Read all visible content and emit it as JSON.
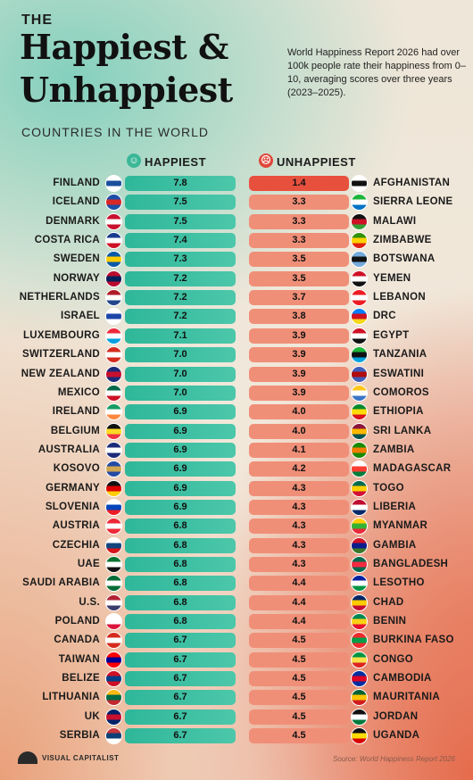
{
  "title": {
    "the": "THE",
    "line1": "Happiest &",
    "line2": "Unhappiest",
    "subtitle": "COUNTRIES IN THE WORLD"
  },
  "description": "World Happiness Report 2026 had over 100k people rate their happiness from 0–10, averaging scores over three years (2023–2025).",
  "headers": {
    "happiest": "HAPPIEST",
    "unhappiest": "UNHAPPIEST"
  },
  "footer": {
    "logo": "VISUAL CAPITALIST",
    "source": "Source: World Happiness Report 2026"
  },
  "colors": {
    "happiest_bar": "#3cbfa0",
    "unhappiest_bar": "#f08f78",
    "lowest_bar": "#e8503e",
    "teal_accent": "#60c9b4",
    "coral_accent": "#e46a4a"
  },
  "chart_data": [
    {
      "type": "bar",
      "title": "HAPPIEST",
      "categories": [
        "FINLAND",
        "ICELAND",
        "DENMARK",
        "COSTA RICA",
        "SWEDEN",
        "NORWAY",
        "NETHERLANDS",
        "ISRAEL",
        "LUXEMBOURG",
        "SWITZERLAND",
        "NEW ZEALAND",
        "MEXICO",
        "IRELAND",
        "BELGIUM",
        "AUSTRALIA",
        "KOSOVO",
        "GERMANY",
        "SLOVENIA",
        "AUSTRIA",
        "CZECHIA",
        "UAE",
        "SAUDI ARABIA",
        "U.S.",
        "POLAND",
        "CANADA",
        "TAIWAN",
        "BELIZE",
        "LITHUANIA",
        "UK",
        "SERBIA"
      ],
      "values": [
        "7.8",
        "7.5",
        "7.5",
        "7.4",
        "7.3",
        "7.2",
        "7.2",
        "7.2",
        "7.1",
        "7.0",
        "7.0",
        "7.0",
        "6.9",
        "6.9",
        "6.9",
        "6.9",
        "6.9",
        "6.9",
        "6.8",
        "6.8",
        "6.8",
        "6.8",
        "6.8",
        "6.8",
        "6.7",
        "6.7",
        "6.7",
        "6.7",
        "6.7",
        "6.7"
      ]
    },
    {
      "type": "bar",
      "title": "UNHAPPIEST",
      "categories": [
        "AFGHANISTAN",
        "SIERRA LEONE",
        "MALAWI",
        "ZIMBABWE",
        "BOTSWANA",
        "YEMEN",
        "LEBANON",
        "DRC",
        "EGYPT",
        "TANZANIA",
        "ESWATINI",
        "COMOROS",
        "ETHIOPIA",
        "SRI LANKA",
        "ZAMBIA",
        "MADAGASCAR",
        "TOGO",
        "LIBERIA",
        "MYANMAR",
        "GAMBIA",
        "BANGLADESH",
        "LESOTHO",
        "CHAD",
        "BENIN",
        "BURKINA FASO",
        "CONGO",
        "CAMBODIA",
        "MAURITANIA",
        "JORDAN",
        "UGANDA"
      ],
      "values": [
        "1.4",
        "3.3",
        "3.3",
        "3.3",
        "3.5",
        "3.5",
        "3.7",
        "3.8",
        "3.9",
        "3.9",
        "3.9",
        "3.9",
        "4.0",
        "4.0",
        "4.1",
        "4.2",
        "4.3",
        "4.3",
        "4.3",
        "4.3",
        "4.3",
        "4.4",
        "4.4",
        "4.4",
        "4.5",
        "4.5",
        "4.5",
        "4.5",
        "4.5",
        "4.5"
      ]
    }
  ],
  "flags": {
    "happiest": [
      [
        "#ffffff",
        "#1b4f9c",
        "#ffffff"
      ],
      [
        "#1c4fa8",
        "#d72828",
        "#1c4fa8"
      ],
      [
        "#c8102e",
        "#ffffff",
        "#c8102e"
      ],
      [
        "#1a3c8f",
        "#ffffff",
        "#ce1126"
      ],
      [
        "#0a5aa8",
        "#fecc02",
        "#0a5aa8"
      ],
      [
        "#ba0c2f",
        "#00205b",
        "#ba0c2f"
      ],
      [
        "#ae1c28",
        "#ffffff",
        "#21468b"
      ],
      [
        "#ffffff",
        "#1c46a8",
        "#ffffff"
      ],
      [
        "#ed2939",
        "#ffffff",
        "#00a1de"
      ],
      [
        "#d52b1e",
        "#ffffff",
        "#d52b1e"
      ],
      [
        "#1c2a7a",
        "#c8102e",
        "#1c2a7a"
      ],
      [
        "#006847",
        "#ffffff",
        "#ce1126"
      ],
      [
        "#169b62",
        "#ffffff",
        "#ff883e"
      ],
      [
        "#111111",
        "#fdda24",
        "#ef3340"
      ],
      [
        "#1c2a7a",
        "#ffffff",
        "#1c2a7a"
      ],
      [
        "#244aa5",
        "#d0a650",
        "#244aa5"
      ],
      [
        "#111111",
        "#dd0000",
        "#ffce00"
      ],
      [
        "#ffffff",
        "#0044bb",
        "#ee1c25"
      ],
      [
        "#ed2939",
        "#ffffff",
        "#ed2939"
      ],
      [
        "#ffffff",
        "#11457e",
        "#d7141a"
      ],
      [
        "#00732f",
        "#ffffff",
        "#111111"
      ],
      [
        "#006c35",
        "#ffffff",
        "#006c35"
      ],
      [
        "#b22234",
        "#ffffff",
        "#3c3b6e"
      ],
      [
        "#ffffff",
        "#ffffff",
        "#dc143c"
      ],
      [
        "#d52b1e",
        "#ffffff",
        "#d52b1e"
      ],
      [
        "#fe0000",
        "#000095",
        "#fe0000"
      ],
      [
        "#ce1126",
        "#003f87",
        "#ce1126"
      ],
      [
        "#fdb913",
        "#006a44",
        "#c1272d"
      ],
      [
        "#012169",
        "#c8102e",
        "#012169"
      ],
      [
        "#c6363c",
        "#0c4076",
        "#ffffff"
      ]
    ],
    "unhappiest": [
      [
        "#ffffff",
        "#111111",
        "#ffffff"
      ],
      [
        "#1eb53a",
        "#ffffff",
        "#0072c6"
      ],
      [
        "#111111",
        "#ce1126",
        "#339e35"
      ],
      [
        "#319208",
        "#ffd200",
        "#de2010"
      ],
      [
        "#75aadb",
        "#111111",
        "#75aadb"
      ],
      [
        "#ce1126",
        "#ffffff",
        "#111111"
      ],
      [
        "#ed1c24",
        "#ffffff",
        "#ed1c24"
      ],
      [
        "#007fff",
        "#ce1021",
        "#f7d618"
      ],
      [
        "#ce1126",
        "#ffffff",
        "#111111"
      ],
      [
        "#1eb53a",
        "#111111",
        "#00a3dd"
      ],
      [
        "#3e5eb9",
        "#b10c0c",
        "#3e5eb9"
      ],
      [
        "#ffc61e",
        "#ffffff",
        "#3a75c4"
      ],
      [
        "#078930",
        "#fcdd09",
        "#da121a"
      ],
      [
        "#8d153a",
        "#ffb700",
        "#00534e"
      ],
      [
        "#198a00",
        "#ef7d00",
        "#198a00"
      ],
      [
        "#ffffff",
        "#fc3d32",
        "#007e3a"
      ],
      [
        "#006a4e",
        "#ffce00",
        "#d21034"
      ],
      [
        "#bf0a30",
        "#ffffff",
        "#002868"
      ],
      [
        "#fecb00",
        "#34b233",
        "#ea2839"
      ],
      [
        "#ce1126",
        "#0c1c8c",
        "#3a7728"
      ],
      [
        "#006a4e",
        "#f42a41",
        "#006a4e"
      ],
      [
        "#00209f",
        "#ffffff",
        "#009543"
      ],
      [
        "#002664",
        "#fecb00",
        "#c60c30"
      ],
      [
        "#008751",
        "#fcd116",
        "#e8112d"
      ],
      [
        "#ef2b2d",
        "#009e49",
        "#ef2b2d"
      ],
      [
        "#009543",
        "#fbde4a",
        "#dc241f"
      ],
      [
        "#032ea1",
        "#e00025",
        "#032ea1"
      ],
      [
        "#006233",
        "#ffc400",
        "#d01c1f"
      ],
      [
        "#111111",
        "#ffffff",
        "#007a3d"
      ],
      [
        "#111111",
        "#fcdc04",
        "#d90000"
      ]
    ]
  }
}
